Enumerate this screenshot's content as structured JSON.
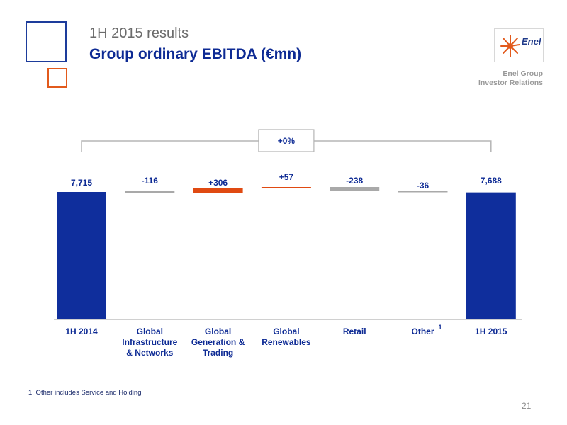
{
  "header": {
    "supertitle": "1H 2015 results",
    "title": "Group ordinary EBITDA (€mn)",
    "logo_text": "Enel",
    "corp_line1": "Enel Group",
    "corp_line2": "Investor Relations"
  },
  "colors": {
    "total": "#0f2e9c",
    "negative": "#a9a9a9",
    "positive": "#e04a12",
    "title": "#0d2a94",
    "bracket": "#b5b5b5"
  },
  "chart_data": {
    "type": "bar",
    "subtype": "waterfall",
    "categories": [
      [
        "1H 2014"
      ],
      [
        "Global",
        "Infrastructure",
        "& Networks"
      ],
      [
        "Global",
        "Generation &",
        "Trading"
      ],
      [
        "Global",
        "Renewables"
      ],
      [
        "Retail"
      ],
      [
        "Other"
      ],
      [
        "1H 2015"
      ]
    ],
    "kinds": [
      "total",
      "delta",
      "delta",
      "delta",
      "delta",
      "delta",
      "total"
    ],
    "values": [
      7715,
      -116,
      306,
      57,
      -238,
      -36,
      7688
    ],
    "value_labels": [
      "7,715",
      "-116",
      "+306",
      "+57",
      "-238",
      "-36",
      "7,688"
    ],
    "superscripts": [
      "",
      "",
      "",
      "",
      "",
      "1",
      ""
    ],
    "bracket_label": "+0%",
    "title": "Group ordinary EBITDA (€mn)"
  },
  "footnote": "1.     Other includes Service and Holding",
  "page_number": "21"
}
